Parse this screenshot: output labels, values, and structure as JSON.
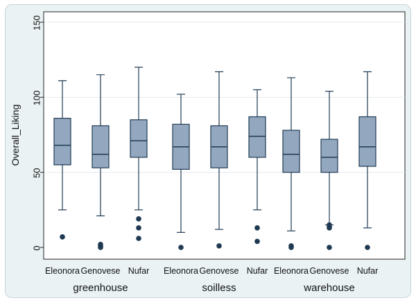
{
  "chart_data": {
    "type": "boxplot",
    "ylabel": "Overall_Liking",
    "ylim": [
      0,
      150
    ],
    "yticks": [
      0,
      50,
      100,
      150
    ],
    "grid": true,
    "groups": [
      {
        "label": "greenhouse",
        "categories": [
          {
            "label": "Eleonora",
            "whisker_low": 25,
            "q1": 55,
            "median": 68,
            "q3": 86,
            "whisker_high": 111,
            "outliers": [
              7
            ]
          },
          {
            "label": "Genovese",
            "whisker_low": 21,
            "q1": 53,
            "median": 62,
            "q3": 81,
            "whisker_high": 115,
            "outliers": [
              0,
              1,
              2
            ]
          },
          {
            "label": "Nufar",
            "whisker_low": 25,
            "q1": 60,
            "median": 71,
            "q3": 85,
            "whisker_high": 120,
            "outliers": [
              6,
              13,
              19
            ]
          }
        ]
      },
      {
        "label": "soilless",
        "categories": [
          {
            "label": "Eleonora",
            "whisker_low": 10,
            "q1": 52,
            "median": 67,
            "q3": 82,
            "whisker_high": 102,
            "outliers": [
              0
            ]
          },
          {
            "label": "Genovese",
            "whisker_low": 12,
            "q1": 53,
            "median": 67,
            "q3": 81,
            "whisker_high": 117,
            "outliers": [
              1
            ]
          },
          {
            "label": "Nufar",
            "whisker_low": 25,
            "q1": 60,
            "median": 74,
            "q3": 87,
            "whisker_high": 105,
            "outliers": [
              4,
              13
            ]
          }
        ]
      },
      {
        "label": "warehouse",
        "categories": [
          {
            "label": "Eleonora",
            "whisker_low": 11,
            "q1": 50,
            "median": 62,
            "q3": 78,
            "whisker_high": 113,
            "outliers": [
              0,
              1
            ]
          },
          {
            "label": "Genovese",
            "whisker_low": 15,
            "q1": 50,
            "median": 60,
            "q3": 72,
            "whisker_high": 104,
            "outliers": [
              0,
              13,
              14,
              15
            ]
          },
          {
            "label": "Nufar",
            "whisker_low": 13,
            "q1": 54,
            "median": 67,
            "q3": 87,
            "whisker_high": 117,
            "outliers": [
              0
            ]
          }
        ]
      }
    ],
    "colors": {
      "box_fill": "#93a8bf",
      "box_stroke": "#1f3a52",
      "median": "#1f3a52",
      "whisker": "#1f3a52",
      "outlier": "#1f3a52",
      "grid": "#e4eaee",
      "plot_bg": "#ffffff"
    }
  }
}
